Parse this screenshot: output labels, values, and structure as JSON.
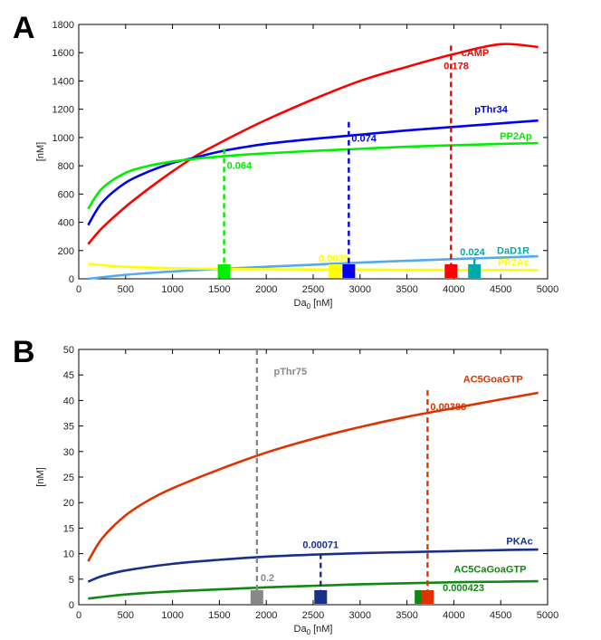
{
  "chart_data": [
    {
      "panel_label": "A",
      "type": "line",
      "xlabel": "Da",
      "xlabel_sub": "0",
      "xlabel_unit": " [nM]",
      "ylabel": "[nM]",
      "xlim": [
        0,
        5000
      ],
      "ylim": [
        0,
        1800
      ],
      "xticks": [
        0,
        500,
        1000,
        1500,
        2000,
        2500,
        3000,
        3500,
        4000,
        4500,
        5000
      ],
      "yticks": [
        0,
        200,
        400,
        600,
        800,
        1000,
        1200,
        1400,
        1600,
        1800
      ],
      "grid": false,
      "series": [
        {
          "name": "cAMP",
          "color": "#ff0000",
          "x": [
            100,
            250,
            500,
            750,
            1000,
            1250,
            1500,
            1750,
            2000,
            2500,
            3000,
            3500,
            4000,
            4500,
            4900
          ],
          "y": [
            245,
            360,
            510,
            640,
            760,
            870,
            960,
            1045,
            1125,
            1270,
            1400,
            1500,
            1590,
            1660,
            1640
          ]
        },
        {
          "name": "pThr34",
          "color": "#0000ee",
          "x": [
            100,
            250,
            500,
            750,
            1000,
            1250,
            1500,
            1750,
            2000,
            2500,
            3000,
            3500,
            4000,
            4500,
            4900
          ],
          "y": [
            380,
            540,
            680,
            760,
            820,
            860,
            900,
            930,
            955,
            990,
            1020,
            1050,
            1075,
            1100,
            1120
          ]
        },
        {
          "name": "PP2Ap",
          "color": "#00ee00",
          "x": [
            100,
            250,
            500,
            750,
            1000,
            1250,
            1500,
            1750,
            2000,
            2500,
            3000,
            3500,
            4000,
            4500,
            4900
          ],
          "y": [
            495,
            640,
            750,
            800,
            830,
            850,
            865,
            878,
            888,
            905,
            920,
            935,
            945,
            955,
            960
          ]
        },
        {
          "name": "DaD1R",
          "color": "#55aaee",
          "x": [
            100,
            500,
            1000,
            1500,
            2000,
            2500,
            3000,
            3500,
            4000,
            4500,
            4900
          ],
          "y": [
            0,
            28,
            52,
            70,
            85,
            100,
            115,
            128,
            140,
            150,
            160
          ]
        },
        {
          "name": "PP2Ac",
          "color": "#ffff00",
          "x": [
            100,
            500,
            1000,
            1500,
            2000,
            2500,
            3000,
            3500,
            4000,
            4500,
            4900
          ],
          "y": [
            105,
            85,
            75,
            70,
            68,
            66,
            65,
            64,
            63,
            62,
            61
          ]
        }
      ],
      "markers": [
        {
          "series": "PP2Ap",
          "x": 1550,
          "y_top": 920,
          "label": "0.064",
          "color": "#00ee00",
          "label_pos": "right-below"
        },
        {
          "series": "PP2Ac",
          "x": 2730,
          "y_top": null,
          "label": "0.0035",
          "color": "#ffff00",
          "label_pos": "left-above"
        },
        {
          "series": "pThr34",
          "x": 2880,
          "y_top": 1110,
          "label": "0.074",
          "color": "#0000ee",
          "label_pos": "right-below"
        },
        {
          "series": "cAMP",
          "x": 3970,
          "y_top": 1650,
          "label": "0.178",
          "color": "#ff0000",
          "label_pos": "left-below"
        },
        {
          "series": "DaD1R",
          "x": 4220,
          "y_top": 140,
          "label": "0.024",
          "color": "#00aaaa",
          "label_pos": "right-above"
        }
      ],
      "labels": [
        {
          "text": "cAMP",
          "color": "#ff0000",
          "x": 4080,
          "y": 1575
        },
        {
          "text": "pThr34",
          "color": "#0000ee",
          "x": 4220,
          "y": 1175
        },
        {
          "text": "PP2Ap",
          "color": "#00ee00",
          "x": 4490,
          "y": 985
        },
        {
          "text": "DaD1R",
          "color": "#00aaaa",
          "x": 4460,
          "y": 175
        },
        {
          "text": "PP2Ac",
          "color": "#ffff00",
          "x": 4470,
          "y": 92
        }
      ]
    },
    {
      "panel_label": "B",
      "type": "line",
      "xlabel": "Da",
      "xlabel_sub": "0",
      "xlabel_unit": " [nM]",
      "ylabel": "[nM]",
      "xlim": [
        0,
        5000
      ],
      "ylim": [
        0,
        50
      ],
      "xticks": [
        0,
        500,
        1000,
        1500,
        2000,
        2500,
        3000,
        3500,
        4000,
        4500,
        5000
      ],
      "yticks": [
        0,
        5,
        10,
        15,
        20,
        25,
        30,
        35,
        40,
        45,
        50
      ],
      "grid": false,
      "series": [
        {
          "name": "AC5GoaGTP",
          "color": "#dd3300",
          "x": [
            100,
            250,
            500,
            750,
            1000,
            1500,
            2000,
            2500,
            3000,
            3500,
            4000,
            4500,
            4900
          ],
          "y": [
            8.5,
            13,
            17.5,
            20.5,
            22.8,
            26.5,
            29.8,
            32.5,
            34.8,
            36.8,
            38.5,
            40.2,
            41.5
          ]
        },
        {
          "name": "PKAc",
          "color": "#1a2e8c",
          "x": [
            100,
            250,
            500,
            1000,
            1500,
            2000,
            2500,
            3000,
            3500,
            4000,
            4500,
            4900
          ],
          "y": [
            4.5,
            5.6,
            6.7,
            8.0,
            8.8,
            9.4,
            9.8,
            10.1,
            10.3,
            10.5,
            10.7,
            10.8
          ]
        },
        {
          "name": "AC5CaGoaGTP",
          "color": "#118811",
          "x": [
            100,
            500,
            1000,
            1500,
            2000,
            2500,
            3000,
            3500,
            4000,
            4500,
            4900
          ],
          "y": [
            1.2,
            2.0,
            2.6,
            3.0,
            3.4,
            3.7,
            4.0,
            4.2,
            4.4,
            4.5,
            4.6
          ]
        }
      ],
      "markers": [
        {
          "series": "pThr75",
          "x": 1900,
          "y_top": 50,
          "label": "0.2",
          "color": "#888888",
          "label_pos": "right-below"
        },
        {
          "series": "PKAc",
          "x": 2580,
          "y_top": 10,
          "label": "0.00071",
          "color": "#1a2e8c",
          "label_pos": "center-above"
        },
        {
          "series": "AC5CaGoaGTP",
          "x": 3650,
          "y_top": null,
          "label": "0.000423",
          "color": "#118811",
          "label_pos": "right-below"
        },
        {
          "series": "AC5GoaGTP",
          "x": 3720,
          "y_top": 42,
          "label": "0.00386",
          "color": "#dd3300",
          "label_pos": "right-below"
        }
      ],
      "labels": [
        {
          "text": "pThr75",
          "color": "#888888",
          "x": 2080,
          "y": 45
        },
        {
          "text": "AC5GoaGTP",
          "color": "#dd3300",
          "x": 4100,
          "y": 43.5
        },
        {
          "text": "PKAc",
          "color": "#1a2e8c",
          "x": 4560,
          "y": 11.8
        },
        {
          "text": "AC5CaGoaGTP",
          "color": "#118811",
          "x": 4000,
          "y": 6.3
        }
      ]
    }
  ]
}
